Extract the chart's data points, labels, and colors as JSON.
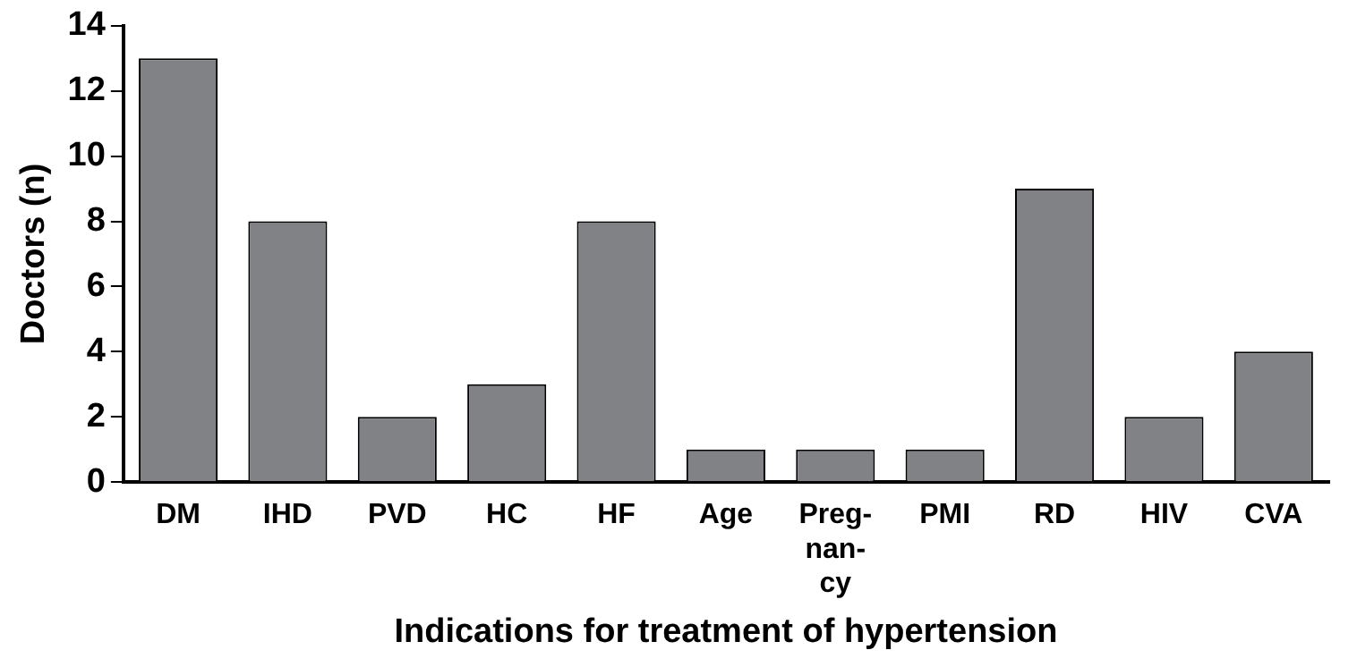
{
  "chart_data": {
    "type": "bar",
    "xlabel": "Indications for treatment of hypertension",
    "ylabel": "Doctors (n)",
    "categories": [
      "DM",
      "IHD",
      "PVD",
      "HC",
      "HF",
      "Age",
      "Preg-\nnan-\ncy",
      "PMI",
      "RD",
      "HIV",
      "CVA"
    ],
    "values": [
      13,
      8,
      2,
      3,
      8,
      1,
      1,
      1,
      9,
      2,
      4
    ],
    "color": "#818285",
    "ylim": [
      0,
      14
    ],
    "yticks": [
      0,
      2,
      4,
      6,
      8,
      10,
      12,
      14
    ],
    "grid": false,
    "legend": false
  }
}
